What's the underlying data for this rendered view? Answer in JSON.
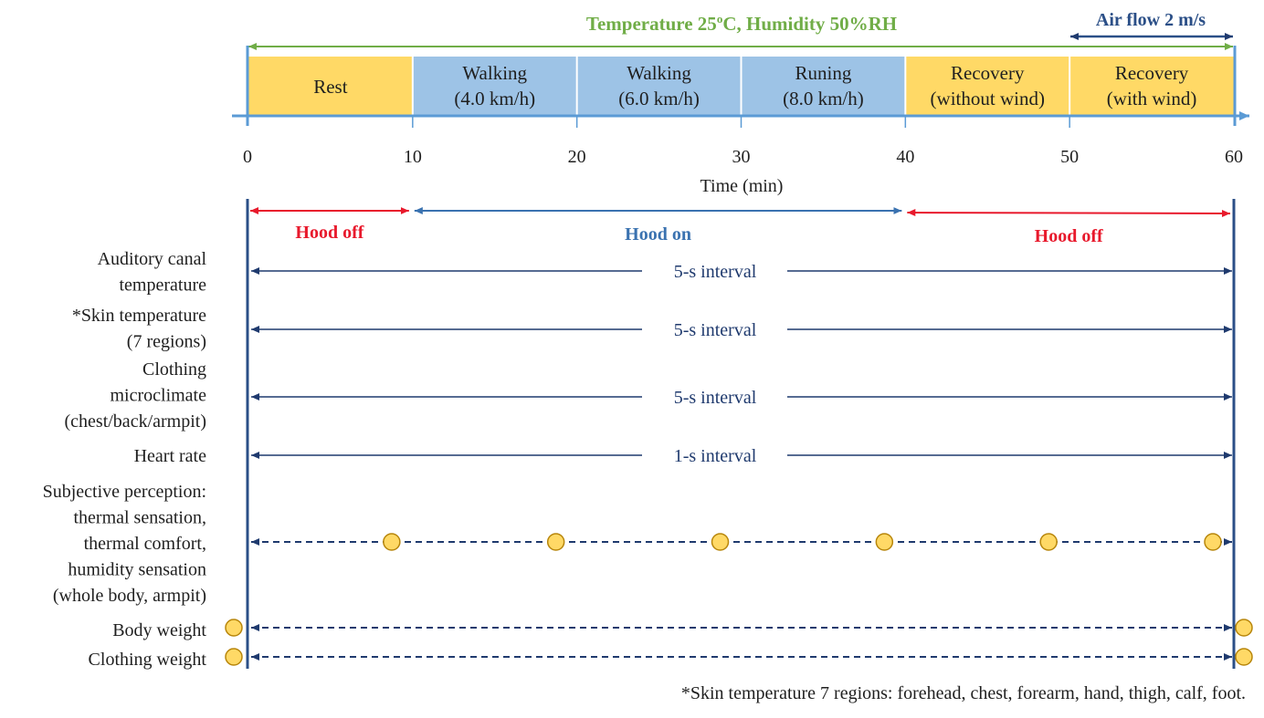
{
  "header": {
    "environment_prefix": "Temperature 25",
    "environment_sup": "o",
    "environment_suffix": "C, Humidity 50%RH",
    "airflow": "Air flow 2 m/s"
  },
  "phases": [
    {
      "start": 0,
      "end": 10,
      "lines": [
        "Rest"
      ],
      "color": "#ffd966"
    },
    {
      "start": 10,
      "end": 20,
      "lines": [
        "Walking",
        "(4.0 km/h)"
      ],
      "color": "#9dc3e6"
    },
    {
      "start": 20,
      "end": 30,
      "lines": [
        "Walking",
        "(6.0 km/h)"
      ],
      "color": "#9dc3e6"
    },
    {
      "start": 30,
      "end": 40,
      "lines": [
        "Runing",
        "(8.0 km/h)"
      ],
      "color": "#9dc3e6"
    },
    {
      "start": 40,
      "end": 50,
      "lines": [
        "Recovery",
        "(without wind)"
      ],
      "color": "#ffd966"
    },
    {
      "start": 50,
      "end": 60,
      "lines": [
        "Recovery",
        "(with wind)"
      ],
      "color": "#ffd966"
    }
  ],
  "axis": {
    "ticks": [
      "0",
      "10",
      "20",
      "30",
      "40",
      "50",
      "60"
    ],
    "label": "Time (min)"
  },
  "hood": [
    {
      "label": "Hood off",
      "start": 0,
      "end": 10,
      "color": "#e8192c"
    },
    {
      "label": "Hood on",
      "start": 10,
      "end": 40,
      "color": "#3a72b0"
    },
    {
      "label": "Hood off",
      "start": 40,
      "end": 60,
      "color": "#e8192c"
    }
  ],
  "measurements": [
    {
      "label": [
        "Auditory canal",
        "temperature"
      ],
      "interval": "5-s interval",
      "style": "solid"
    },
    {
      "label": [
        "*Skin temperature",
        "(7 regions)"
      ],
      "interval": "5-s interval",
      "style": "solid"
    },
    {
      "label": [
        "Clothing",
        "microclimate",
        "(chest/back/armpit)"
      ],
      "interval": "5-s interval",
      "style": "solid"
    },
    {
      "label": [
        "Heart rate"
      ],
      "interval": "1-s interval",
      "style": "solid"
    },
    {
      "label": [
        "Subjective perception:",
        "thermal sensation,",
        "thermal comfort,",
        "humidity sensation",
        "(whole body, armpit)"
      ],
      "interval": "",
      "style": "dashed",
      "points": [
        9,
        19,
        29,
        39,
        49,
        59
      ]
    },
    {
      "label": [
        "Body weight"
      ],
      "interval": "",
      "style": "dashed",
      "points": [
        "before start",
        "after end"
      ]
    },
    {
      "label": [
        "Clothing weight"
      ],
      "interval": "",
      "style": "dashed",
      "points": [
        "before start",
        "after end"
      ]
    }
  ],
  "footnote": "*Skin temperature 7 regions: forehead, chest, forearm, hand, thigh, calf, foot.",
  "colors": {
    "rest": "#ffd966",
    "exercise": "#9dc3e6",
    "axis": "#5b9bd5",
    "green": "#70ad47",
    "navy": "#1f3a6e",
    "red": "#e8192c",
    "marker": "#ffd966"
  }
}
